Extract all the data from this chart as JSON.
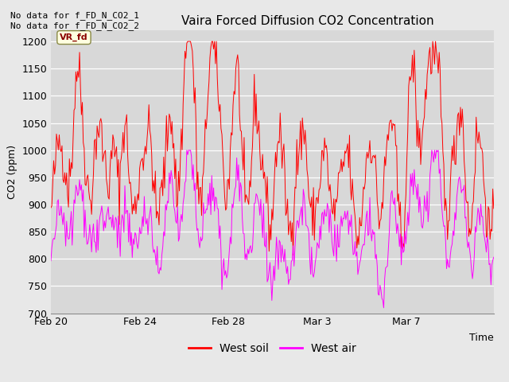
{
  "title": "Vaira Forced Diffusion CO2 Concentration",
  "xlabel": "Time",
  "ylabel": "CO2 (ppm)",
  "ylim": [
    700,
    1220
  ],
  "yticks": [
    700,
    750,
    800,
    850,
    900,
    950,
    1000,
    1050,
    1100,
    1150,
    1200
  ],
  "background_color": "#e8e8e8",
  "plot_bg_color": "#d8d8d8",
  "legend_labels": [
    "West soil",
    "West air"
  ],
  "annotation_text": "No data for f_FD_N_CO2_1\nNo data for f_FD_N_CO2_2",
  "box_label": "VR_fd",
  "x_tick_labels": [
    "Feb 20",
    "Feb 24",
    "Feb 28",
    "Mar 3",
    "Mar 7"
  ],
  "x_tick_positions": [
    0,
    96,
    192,
    288,
    384
  ],
  "total_points": 480,
  "seed": 42
}
